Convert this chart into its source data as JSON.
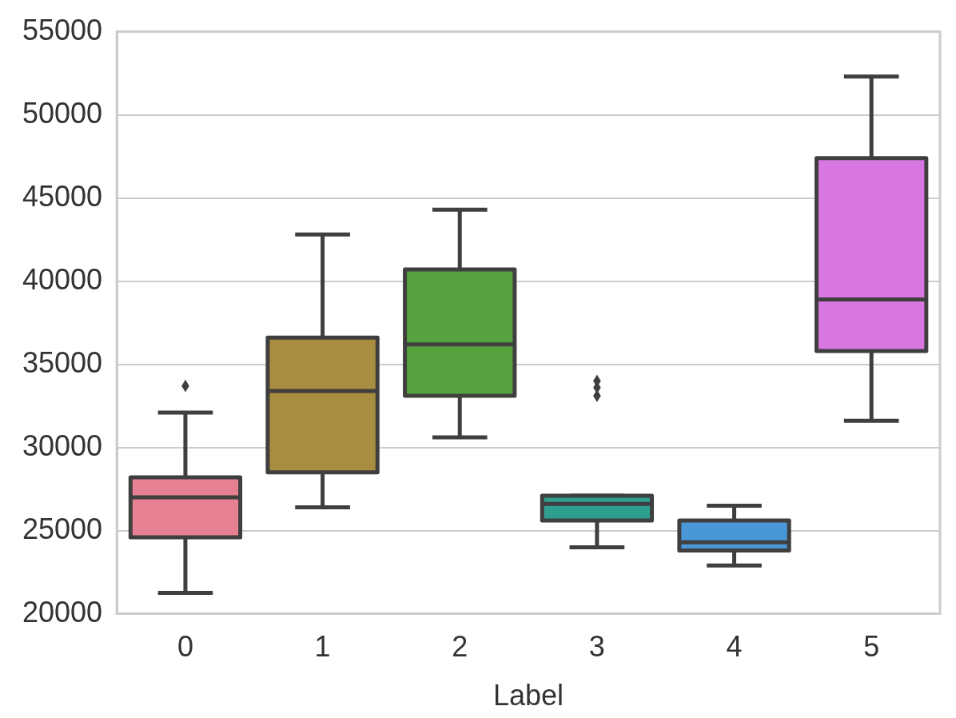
{
  "chart_data": {
    "type": "box",
    "xlabel": "Label",
    "categories": [
      "0",
      "1",
      "2",
      "3",
      "4",
      "5"
    ],
    "colors": [
      "#e68193",
      "#a88c3f",
      "#56a23f",
      "#2f9e8e",
      "#4a97d8",
      "#d977e2"
    ],
    "boxes": [
      {
        "low": 21250,
        "q1": 24600,
        "median": 27000,
        "q3": 28200,
        "high": 32100,
        "outliers": [
          33700
        ]
      },
      {
        "low": 26400,
        "q1": 28500,
        "median": 33400,
        "q3": 36600,
        "high": 42800
      },
      {
        "low": 30600,
        "q1": 33100,
        "median": 36200,
        "q3": 40700,
        "high": 44300
      },
      {
        "low": 24000,
        "q1": 25600,
        "median": 26600,
        "q3": 27100,
        "high": 27100,
        "outliers": [
          34000,
          33600,
          33100
        ]
      },
      {
        "low": 22900,
        "q1": 23800,
        "median": 24300,
        "q3": 25600,
        "high": 26500
      },
      {
        "low": 31600,
        "q1": 35800,
        "median": 38900,
        "q3": 47400,
        "high": 52300
      }
    ],
    "ylim": [
      20000,
      55000
    ],
    "yticks": [
      20000,
      25000,
      30000,
      35000,
      40000,
      45000,
      50000,
      55000
    ],
    "grid": "y",
    "marker": "diamond"
  }
}
